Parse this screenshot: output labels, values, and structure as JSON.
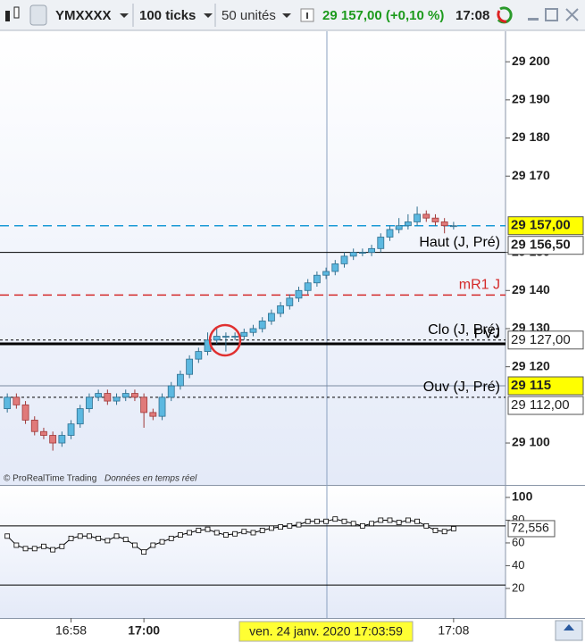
{
  "toolbar": {
    "symbol": "YMXXXX",
    "period": "100 ticks",
    "units": "50 unités",
    "quote": "29 157,00 (+0,10 %)",
    "time": "17:08"
  },
  "footer": {
    "copyright": "© ProRealTime Trading",
    "realtime": "Données en temps réel",
    "cursor_label": "ven. 24 janv. 2020 17:03:59"
  },
  "chart_data": [
    {
      "type": "candlestick",
      "open": [
        29109,
        29112,
        29110,
        29106,
        29103,
        29102,
        29100,
        29102,
        29105,
        29109,
        29112,
        29113,
        29111,
        29112,
        29113,
        29112,
        29108,
        29107,
        29112,
        29115,
        29118,
        29122,
        29124,
        29127,
        29128,
        29128,
        29128,
        29129,
        29130,
        29132,
        29134,
        29136,
        29138,
        29140,
        29142,
        29144,
        29145,
        29147,
        29149,
        29150,
        29150,
        29151,
        29154,
        29156,
        29157,
        29158,
        29160,
        29159,
        29158,
        29157
      ],
      "high": [
        29113,
        29113,
        29111,
        29107,
        29104,
        29103,
        29103,
        29106,
        29110,
        29113,
        29114,
        29114,
        29113,
        29114,
        29114,
        29113,
        29109,
        29113,
        29116,
        29119,
        29123,
        29125,
        29129,
        29130,
        29129,
        29129,
        29130,
        29131,
        29133,
        29135,
        29137,
        29139,
        29141,
        29143,
        29145,
        29146,
        29148,
        29150,
        29151,
        29151,
        29152,
        29155,
        29157,
        29159,
        29160,
        29162,
        29161,
        29160,
        29159,
        29158
      ],
      "low": [
        29108,
        29109,
        29105,
        29102,
        29101,
        29098,
        29099,
        29101,
        29104,
        29108,
        29111,
        29110,
        29110,
        29111,
        29111,
        29104,
        29106,
        29106,
        29111,
        29114,
        29117,
        29121,
        29123,
        29126,
        29124,
        29127,
        29127,
        29128,
        29129,
        29131,
        29133,
        29135,
        29137,
        29139,
        29141,
        29143,
        29144,
        29146,
        29148,
        29149,
        29149,
        29150,
        29153,
        29155,
        29156,
        29157,
        29158,
        29157,
        29155,
        29156
      ],
      "close": [
        29112,
        29110,
        29106,
        29103,
        29102,
        29100,
        29102,
        29105,
        29109,
        29112,
        29113,
        29111,
        29112,
        29113,
        29112,
        29108,
        29107,
        29112,
        29115,
        29118,
        29122,
        29124,
        29127,
        29128,
        29128,
        29128,
        29129,
        29130,
        29132,
        29134,
        29136,
        29138,
        29140,
        29142,
        29144,
        29145,
        29147,
        29149,
        29150,
        29150,
        29151,
        29154,
        29156,
        29157,
        29158,
        29160,
        29159,
        29158,
        29157,
        29157
      ],
      "up_color": "#5cb8e0",
      "down_color": "#e07a7a",
      "xlim": [
        -0.8,
        54.7
      ],
      "xticks": [
        {
          "value": 7,
          "label": "16:58"
        },
        {
          "value": 15,
          "label": "17:00"
        },
        {
          "value": 49,
          "label": "17:08"
        }
      ],
      "ylim": [
        29089,
        29208
      ],
      "yticks": [
        {
          "value": 29100,
          "label": "29 100"
        },
        {
          "value": 29120,
          "label": "29 120"
        },
        {
          "value": 29130,
          "label": "29 130"
        },
        {
          "value": 29140,
          "label": "29 140"
        },
        {
          "value": 29150,
          "label": "29 150"
        },
        {
          "value": 29170,
          "label": "29 170"
        },
        {
          "value": 29180,
          "label": "29 180"
        },
        {
          "value": 29190,
          "label": "29 190"
        },
        {
          "value": 29200,
          "label": "29 200"
        }
      ],
      "levels": [
        {
          "value": 29157,
          "color": "#1a9ad6",
          "style": "dashed"
        },
        {
          "name": "Haut (J, Pré)",
          "value": 29150,
          "color": "#000000",
          "style": "solid"
        },
        {
          "name": "mR1 J",
          "value": 29138.8,
          "color": "#d42a2a",
          "style": "dashed"
        },
        {
          "name": "Clo (J, Pré)",
          "value": 29127,
          "color": "#000000",
          "style": "dotted"
        },
        {
          "name": "PVJ",
          "value": 29126,
          "color": "#000000",
          "style": "thick"
        },
        {
          "value": 29115,
          "color": "#7a8aa0",
          "style": "solid"
        },
        {
          "name": "Ouv (J, Pré)",
          "value": 29112,
          "color": "#000000",
          "style": "dotted"
        }
      ],
      "price_labels": [
        {
          "value": 29157,
          "label": "29 157,00",
          "color": "#ffff00"
        },
        {
          "value": 29156.5,
          "label": "29 156,50",
          "color": "#ffffff"
        },
        {
          "value": 29127,
          "label": "29 127,00",
          "color": "#ffffff"
        },
        {
          "value": 29115,
          "label": "29 115",
          "color": "#ffff00"
        },
        {
          "value": 29112,
          "label": "29 112,00",
          "color": "#ffffff"
        }
      ]
    },
    {
      "type": "line",
      "values": [
        66,
        58,
        55,
        55,
        57,
        54,
        57,
        64,
        66,
        66,
        64,
        62,
        66,
        63,
        58,
        52,
        58,
        61,
        64,
        67,
        69,
        71,
        72,
        69,
        67,
        68,
        70,
        69,
        71,
        73,
        74,
        75,
        76,
        79,
        79,
        79,
        81,
        79,
        77,
        75,
        77,
        80,
        80,
        78,
        80,
        79,
        75,
        71,
        70,
        72.556
      ],
      "value_label": "72,556",
      "color": "#000000",
      "ylim": [
        -6,
        111
      ],
      "yticks": [
        20,
        40,
        60,
        80,
        100
      ],
      "levels": [
        75,
        23
      ]
    }
  ]
}
